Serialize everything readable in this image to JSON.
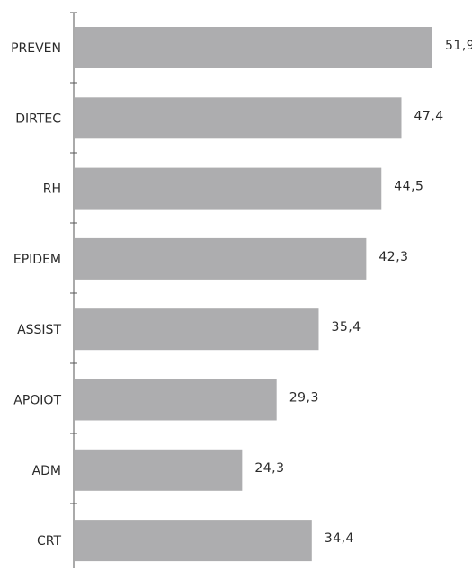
{
  "chart_data": {
    "type": "bar",
    "orientation": "horizontal",
    "categories": [
      "PREVEN",
      "DIRTEC",
      "RH",
      "EPIDEM",
      "ASSIST",
      "APOIOT",
      "ADM",
      "CRT"
    ],
    "values": [
      51.9,
      47.4,
      44.5,
      42.3,
      35.4,
      29.3,
      24.3,
      34.4
    ],
    "value_labels": [
      "51,9",
      "47,4",
      "44,5",
      "42,3",
      "35,4",
      "29,3",
      "24,3",
      "34,4"
    ],
    "xlim": [
      0,
      51.9
    ],
    "grid": false,
    "legend": "none",
    "colors": {
      "bar": "#adadaf",
      "axis": "#555555",
      "text": "#2a2a2a"
    }
  }
}
